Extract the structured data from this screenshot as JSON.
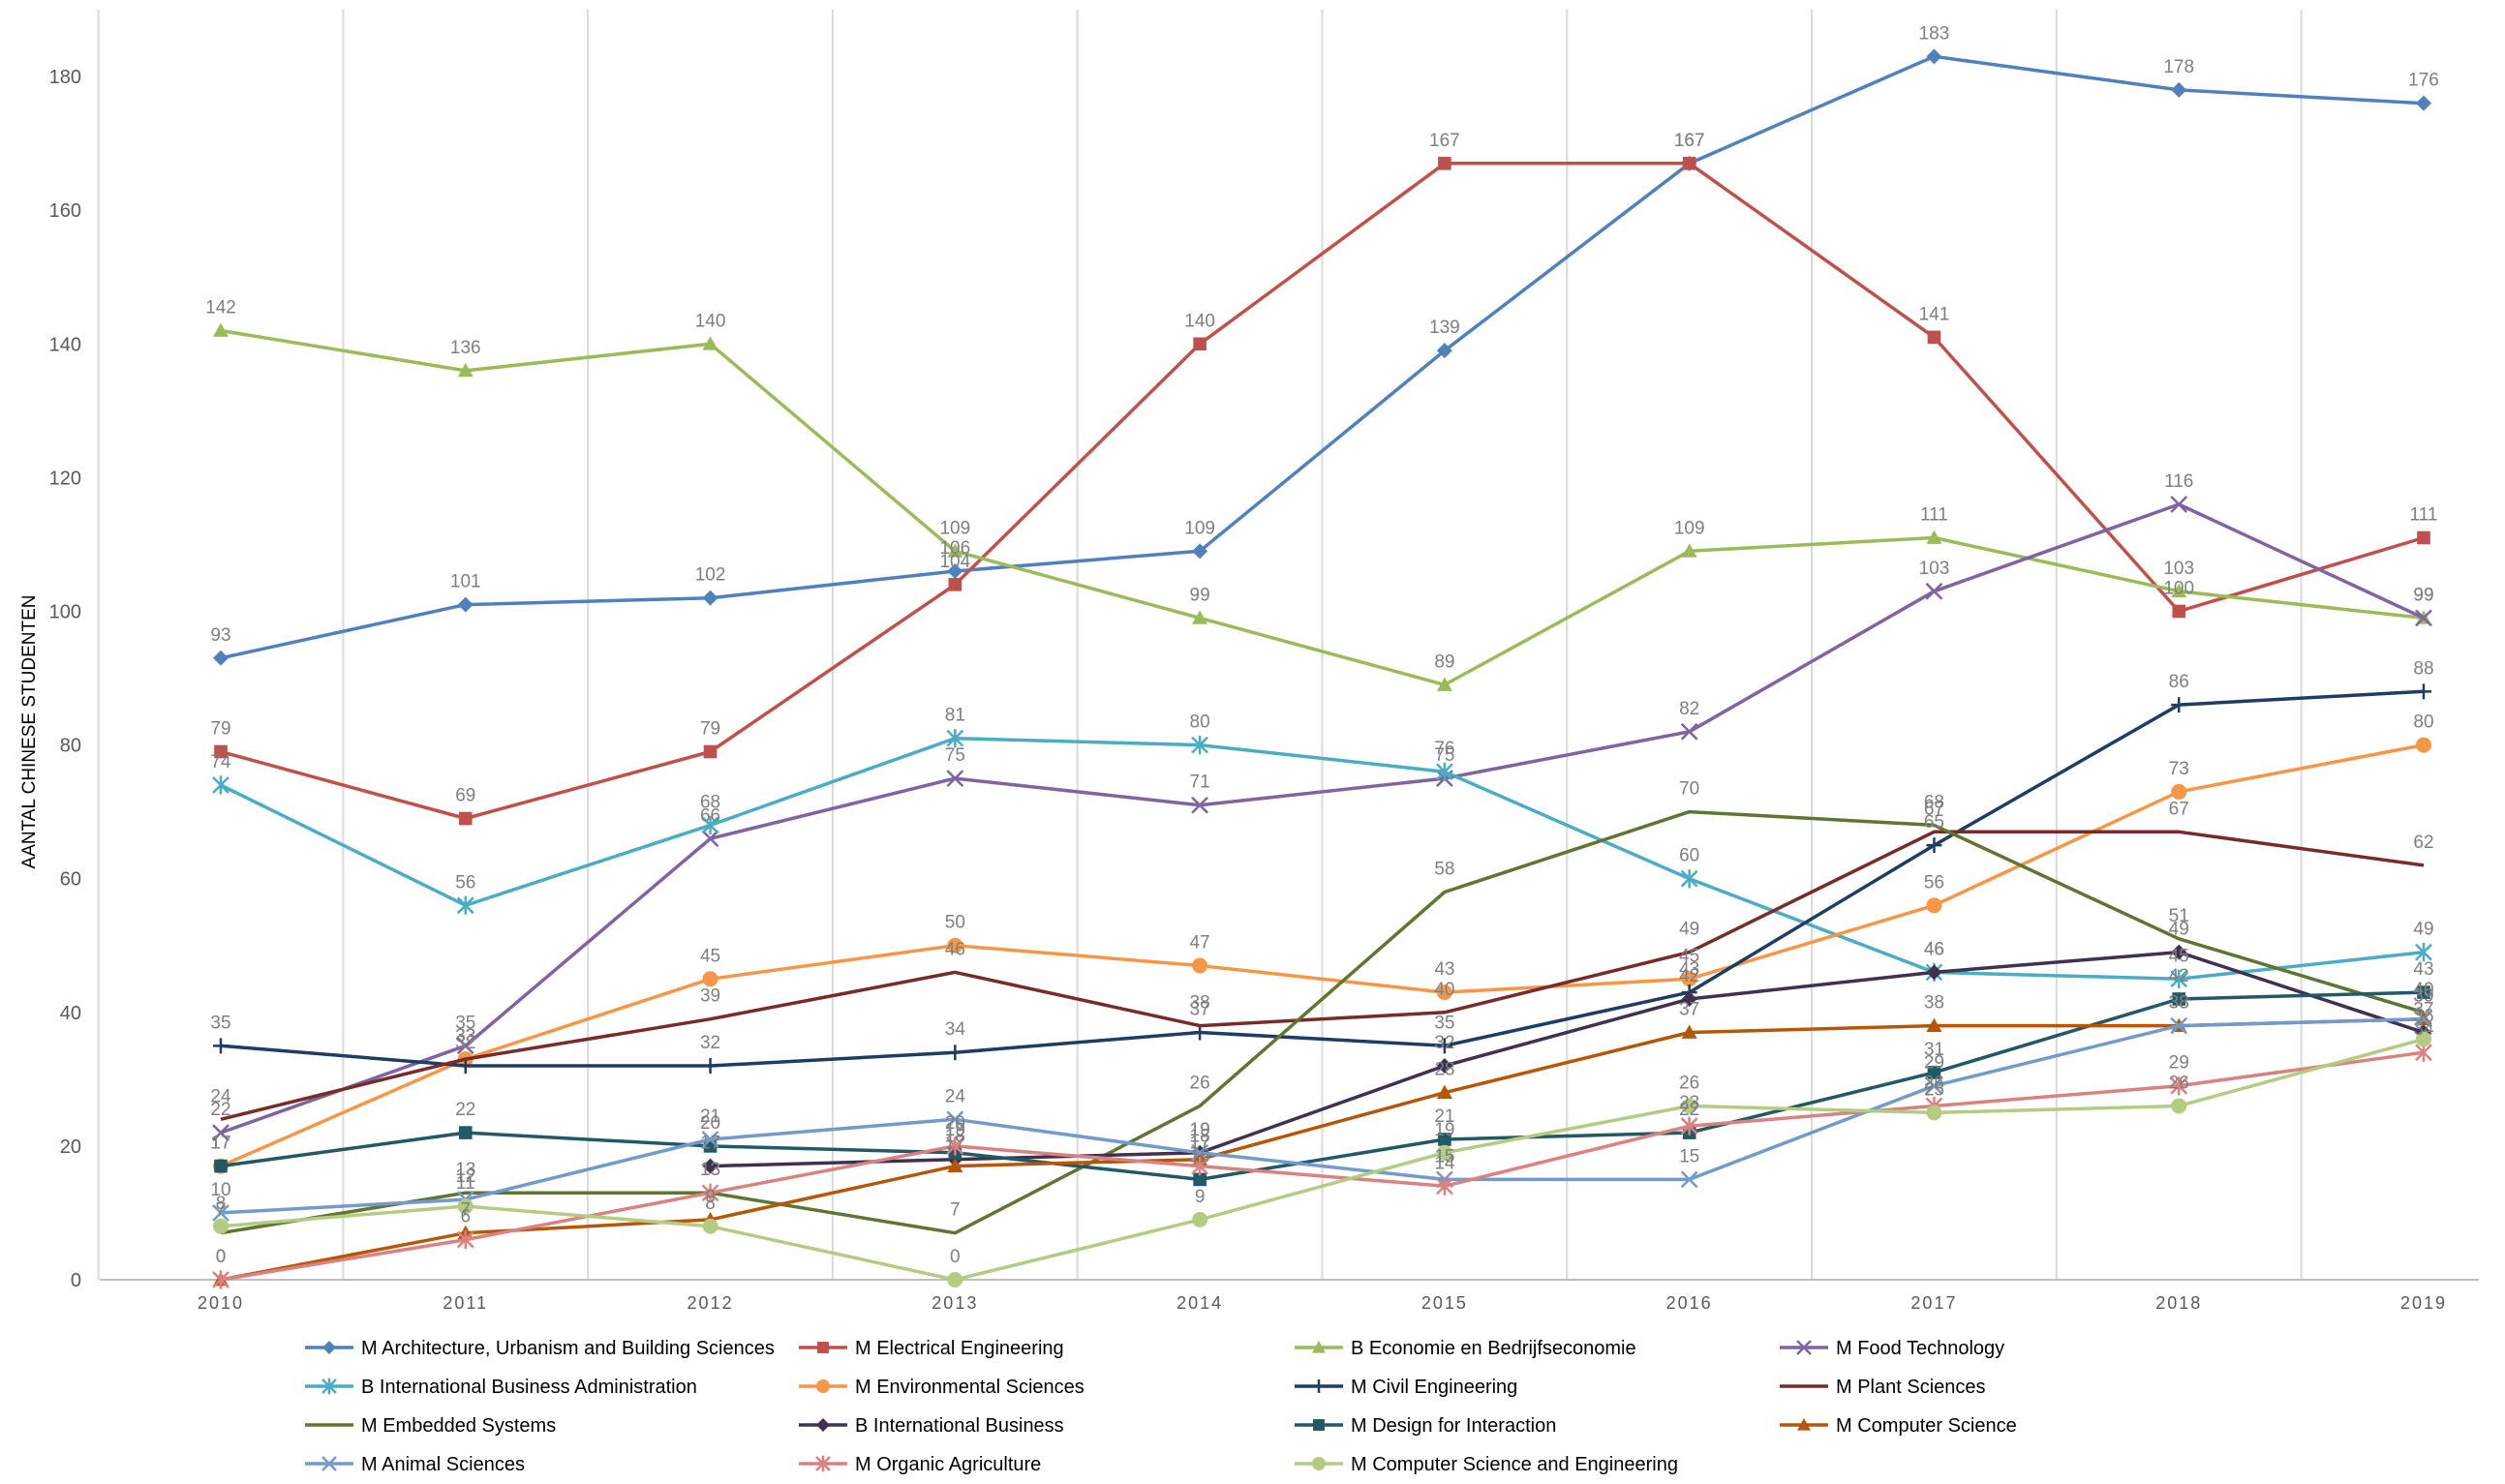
{
  "chart_data": {
    "type": "line",
    "title": "",
    "xlabel": "",
    "ylabel": "AANTAL CHINESE STUDENTEN",
    "ylim": [
      0,
      190
    ],
    "yticks": [
      0,
      20,
      40,
      60,
      80,
      100,
      120,
      140,
      160,
      180
    ],
    "x": [
      "2010",
      "2011",
      "2012",
      "2013",
      "2014",
      "2015",
      "2016",
      "2017",
      "2018",
      "2019"
    ],
    "grid": "vertical",
    "legend_position": "bottom",
    "series": [
      {
        "name": "M Architecture, Urbanism and Building Sciences",
        "color": "#4f81bd",
        "marker": "diamond",
        "values": [
          93,
          101,
          102,
          106,
          109,
          139,
          167,
          183,
          178,
          176
        ]
      },
      {
        "name": "M Electrical Engineering",
        "color": "#c0504d",
        "marker": "square",
        "values": [
          79,
          69,
          79,
          104,
          140,
          167,
          167,
          141,
          100,
          111
        ]
      },
      {
        "name": "B Economie en Bedrijfseconomie",
        "color": "#9bbb59",
        "marker": "triangle",
        "values": [
          142,
          136,
          140,
          109,
          99,
          89,
          109,
          111,
          103,
          99
        ]
      },
      {
        "name": "M Food Technology",
        "color": "#8064a2",
        "marker": "x",
        "values": [
          22,
          35,
          66,
          75,
          71,
          75,
          82,
          103,
          116,
          99
        ]
      },
      {
        "name": "B International Business Administration",
        "color": "#4bacc6",
        "marker": "star",
        "values": [
          74,
          56,
          68,
          81,
          80,
          76,
          60,
          46,
          45,
          49
        ]
      },
      {
        "name": "M Environmental Sciences",
        "color": "#f79646",
        "marker": "circle",
        "values": [
          17,
          33,
          45,
          50,
          47,
          43,
          45,
          56,
          73,
          80
        ]
      },
      {
        "name": "M Civil Engineering",
        "color": "#1f3d64",
        "marker": "plus",
        "values": [
          35,
          32,
          32,
          34,
          37,
          35,
          43,
          65,
          86,
          88
        ]
      },
      {
        "name": "M Plant Sciences",
        "color": "#772c2a",
        "marker": "none",
        "values": [
          24,
          33,
          39,
          46,
          38,
          40,
          49,
          67,
          67,
          62
        ]
      },
      {
        "name": "M Embedded Systems",
        "color": "#5f7530",
        "marker": "none",
        "values": [
          7,
          13,
          13,
          7,
          26,
          58,
          70,
          68,
          51,
          40
        ]
      },
      {
        "name": "B International Business",
        "color": "#403151",
        "marker": "diamond",
        "values": [
          null,
          null,
          17,
          18,
          19,
          32,
          42,
          46,
          49,
          37
        ]
      },
      {
        "name": "M Design for Interaction",
        "color": "#215967",
        "marker": "square",
        "values": [
          17,
          22,
          20,
          19,
          15,
          21,
          22,
          31,
          42,
          43
        ]
      },
      {
        "name": "M Computer Science",
        "color": "#b65708",
        "marker": "triangle",
        "values": [
          0,
          7,
          9,
          17,
          18,
          28,
          37,
          38,
          38,
          39
        ]
      },
      {
        "name": "M Animal Sciences",
        "color": "#729aca",
        "marker": "x",
        "values": [
          10,
          12,
          21,
          24,
          19,
          15,
          15,
          29,
          38,
          39
        ]
      },
      {
        "name": "M Organic Agriculture",
        "color": "#d9827f",
        "marker": "star",
        "values": [
          0,
          6,
          13,
          20,
          17,
          14,
          23,
          26,
          29,
          34
        ]
      },
      {
        "name": "M Computer Science and Engineering",
        "color": "#b3cc82",
        "marker": "circle",
        "values": [
          8,
          11,
          8,
          0,
          9,
          19,
          26,
          25,
          26,
          36
        ]
      }
    ]
  }
}
